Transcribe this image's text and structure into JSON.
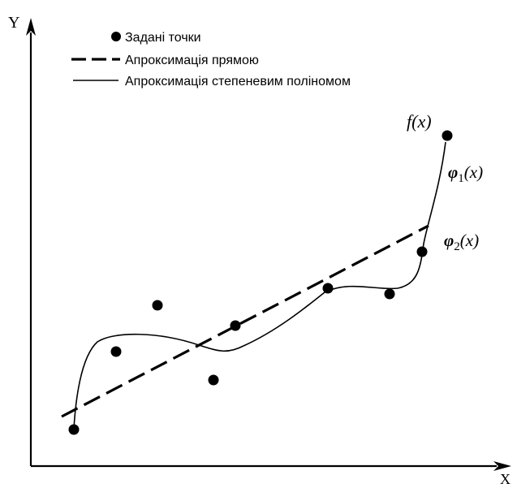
{
  "axes": {
    "x_label": "X",
    "y_label": "Y"
  },
  "legend": {
    "items": [
      {
        "key": "points",
        "label": "Задані точки"
      },
      {
        "key": "line",
        "label": "Апроксимація прямою"
      },
      {
        "key": "poly",
        "label": "Апроксимація степеневим поліномом"
      }
    ]
  },
  "labels": {
    "f_name": "f",
    "f_arg": "(x)",
    "phi1_sym": "φ",
    "phi1_sub": "1",
    "phi1_arg": "(x)",
    "phi2_sym": "φ",
    "phi2_sub": "2",
    "phi2_arg": "(x)"
  },
  "colors": {
    "ink": "#000000",
    "background": "#ffffff"
  }
}
